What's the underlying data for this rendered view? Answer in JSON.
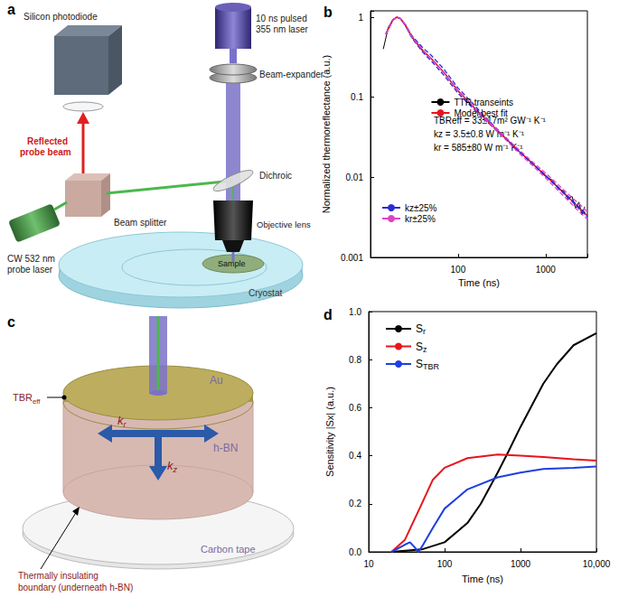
{
  "panels": {
    "a": {
      "label": "a",
      "photodiode": "Silicon photodiode",
      "pump_laser": [
        "10 ns pulsed",
        "355 nm laser"
      ],
      "beam_expander": "Beam-expander",
      "reflected": [
        "Reflected",
        "probe beam"
      ],
      "dichroic": "Dichroic",
      "beam_splitter": "Beam splitter",
      "probe_laser": [
        "CW 532 nm",
        "probe laser"
      ],
      "objective": "Objective lens",
      "sample": "Sample",
      "cryostat": "Cryostat"
    },
    "c": {
      "label": "c",
      "tbr": {
        "main": "TBR",
        "sub": "eff"
      },
      "au": "Au",
      "kr": {
        "main": "k",
        "sub": "r"
      },
      "kz": {
        "main": "k",
        "sub": "z"
      },
      "hbn": "h-BN",
      "carbon_tape": "Carbon tape",
      "boundary": [
        "Thermally insulating",
        "boundary (underneath h-BN)"
      ]
    }
  },
  "chart_data": [
    {
      "type": "line",
      "title": "b",
      "xlabel": "Time (ns)",
      "ylabel": "Normalized thermoreflectance (a.u.)",
      "log": true,
      "grid": false,
      "legend": "upper right",
      "xlim": [
        10,
        3000
      ],
      "xticks": [
        100,
        1000
      ],
      "ylim": [
        0.001,
        1.2
      ],
      "yticks": [
        0.001,
        0.01,
        0.1,
        1
      ],
      "annotations": [
        "TBReff = 33±17m² GW⁻¹ K⁻¹",
        "kz = 3.5±0.8 W m⁻¹ K⁻¹",
        "kr = 585±80 W m⁻¹ K⁻¹"
      ],
      "series": [
        {
          "name": "TTR transeints",
          "color": "#000000",
          "line_style": "solid",
          "x": [
            14,
            16,
            18,
            20,
            22,
            25,
            30,
            40,
            50,
            70,
            100,
            150,
            200,
            300,
            500,
            700,
            1000,
            1200,
            1400,
            1600,
            1800,
            2000,
            2200,
            2400,
            2600,
            2800
          ],
          "values": [
            0.4,
            0.75,
            0.93,
            1.0,
            0.96,
            0.78,
            0.55,
            0.37,
            0.3,
            0.2,
            0.121,
            0.075,
            0.056,
            0.036,
            0.021,
            0.0152,
            0.0102,
            0.0092,
            0.0071,
            0.0068,
            0.0053,
            0.0058,
            0.0041,
            0.0049,
            0.0034,
            0.0043
          ]
        },
        {
          "name": "Model best fit",
          "color": "#e8141c",
          "line_style": "solid",
          "x": [
            15,
            18,
            20,
            22,
            25,
            30,
            40,
            50,
            70,
            100,
            150,
            200,
            300,
            500,
            700,
            1000,
            1500,
            2000,
            2500,
            3000
          ],
          "values": [
            0.62,
            0.92,
            1.0,
            0.96,
            0.8,
            0.56,
            0.38,
            0.3,
            0.2,
            0.12,
            0.076,
            0.055,
            0.036,
            0.021,
            0.015,
            0.0105,
            0.0069,
            0.0051,
            0.004,
            0.0033
          ]
        },
        {
          "name": "kz±25%",
          "color": "#2b2bd6",
          "line_style": "dashed",
          "x": [
            15,
            18,
            20,
            22,
            25,
            30,
            40,
            50,
            70,
            100,
            150,
            200,
            300,
            500,
            700,
            1000,
            1500,
            2000,
            2500,
            3000
          ],
          "values": [
            0.62,
            0.92,
            1.0,
            0.96,
            0.79,
            0.54,
            0.36,
            0.28,
            0.185,
            0.112,
            0.072,
            0.053,
            0.035,
            0.021,
            0.015,
            0.0106,
            0.007,
            0.0052,
            0.0041,
            0.0034
          ]
        },
        {
          "name": "kz±25%",
          "color": "#2b2bd6",
          "line_style": "dashed",
          "x": [
            15,
            18,
            20,
            22,
            25,
            30,
            40,
            50,
            70,
            100,
            150,
            200,
            300,
            500,
            700,
            1000,
            1500,
            2000,
            2500,
            3000
          ],
          "values": [
            0.62,
            0.92,
            1.0,
            0.96,
            0.81,
            0.58,
            0.41,
            0.33,
            0.22,
            0.13,
            0.082,
            0.058,
            0.037,
            0.021,
            0.015,
            0.0104,
            0.0068,
            0.005,
            0.0039,
            0.0032
          ]
        },
        {
          "name": "kr±25%",
          "color": "#e040c8",
          "line_style": "dashed",
          "x": [
            15,
            18,
            20,
            22,
            25,
            30,
            40,
            50,
            70,
            100,
            150,
            200,
            300,
            500,
            700,
            1000,
            1500,
            2000,
            2500,
            3000
          ],
          "values": [
            0.62,
            0.92,
            1.0,
            0.96,
            0.8,
            0.56,
            0.38,
            0.3,
            0.2,
            0.119,
            0.075,
            0.054,
            0.035,
            0.02,
            0.0142,
            0.0098,
            0.0063,
            0.0046,
            0.0036,
            0.003
          ]
        },
        {
          "name": "kr±25%",
          "color": "#e040c8",
          "line_style": "dashed",
          "x": [
            15,
            18,
            20,
            22,
            25,
            30,
            40,
            50,
            70,
            100,
            150,
            200,
            300,
            500,
            700,
            1000,
            1500,
            2000,
            2500,
            3000
          ],
          "values": [
            0.62,
            0.92,
            1.0,
            0.96,
            0.8,
            0.56,
            0.38,
            0.3,
            0.2,
            0.121,
            0.077,
            0.056,
            0.037,
            0.022,
            0.0158,
            0.0113,
            0.0075,
            0.0056,
            0.0045,
            0.0037
          ]
        }
      ]
    },
    {
      "type": "line",
      "title": "d",
      "xlabel": "Time (ns)",
      "ylabel": "Sensitivity |Sx| (a.u.)",
      "log": "x",
      "grid": false,
      "legend": "upper left",
      "xlim": [
        10,
        10000
      ],
      "xticks": [
        10,
        100,
        1000,
        {
          "value": 10000,
          "label": "10,000"
        }
      ],
      "ylim": [
        0,
        1
      ],
      "yticks": [
        {
          "value": 0,
          "label": "0.0"
        },
        0.2,
        0.4,
        0.6,
        0.8,
        {
          "value": 1,
          "label": "1.0"
        }
      ],
      "series": [
        {
          "name": "Sr",
          "color": "#000000",
          "line_style": "solid",
          "x": [
            20,
            50,
            100,
            200,
            300,
            500,
            700,
            1000,
            2000,
            3000,
            5000,
            10000
          ],
          "values": [
            0,
            0.01,
            0.04,
            0.12,
            0.2,
            0.33,
            0.42,
            0.52,
            0.7,
            0.78,
            0.86,
            0.91
          ]
        },
        {
          "name": "Sz",
          "color": "#e8141c",
          "line_style": "solid",
          "x": [
            20,
            30,
            50,
            70,
            100,
            200,
            500,
            1000,
            2000,
            5000,
            10000
          ],
          "values": [
            0,
            0.05,
            0.2,
            0.3,
            0.35,
            0.39,
            0.405,
            0.4,
            0.395,
            0.385,
            0.38
          ]
        },
        {
          "name": "STBR",
          "color": "#1f3fe0",
          "line_style": "solid",
          "x": [
            20,
            30,
            35,
            40,
            45,
            50,
            70,
            100,
            200,
            500,
            1000,
            2000,
            5000,
            10000
          ],
          "values": [
            0,
            0.03,
            0.04,
            0.02,
            0,
            0.02,
            0.1,
            0.18,
            0.26,
            0.31,
            0.33,
            0.345,
            0.35,
            0.355
          ]
        }
      ]
    }
  ]
}
